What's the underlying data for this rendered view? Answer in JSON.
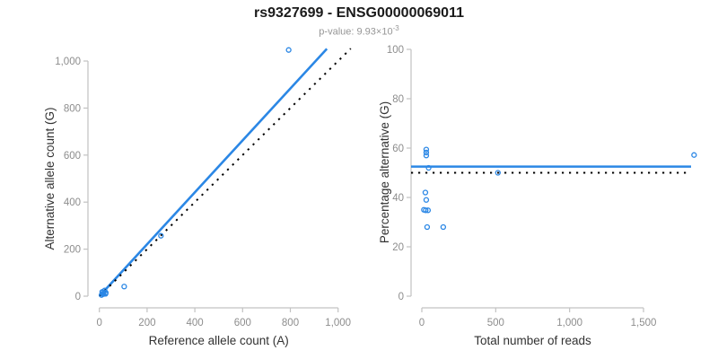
{
  "header": {
    "title": "rs9327699 - ENSG00000069011",
    "subtitle_base": "p-value: 9.93×10",
    "subtitle_exponent": "-3"
  },
  "colors": {
    "accent_blue": "#2b87e5",
    "line_black": "#000000",
    "axis_line": "#c2c2c2",
    "tick_label": "#8d8d8d",
    "axis_title": "#323232",
    "title_color": "#1a1a1a",
    "subtitle_color": "#969696"
  },
  "chart_data": [
    {
      "name": "allele-counts-scatter",
      "type": "scatter",
      "title": "",
      "xlabel": "Reference allele count (A)",
      "ylabel": "Alternative allele count (G)",
      "xlim": [
        0,
        1000
      ],
      "ylim": [
        0,
        1000
      ],
      "grid": false,
      "legend": "none",
      "xticks": [
        0,
        200,
        400,
        600,
        800,
        1000
      ],
      "xtick_labels": [
        "0",
        "200",
        "400",
        "600",
        "800",
        "1,000"
      ],
      "yticks": [
        0,
        200,
        400,
        600,
        800,
        1000
      ],
      "ytick_labels": [
        "0",
        "200",
        "400",
        "600",
        "800",
        "1,000"
      ],
      "points": [
        [
          9,
          5
        ],
        [
          12,
          18
        ],
        [
          12.5,
          17.5
        ],
        [
          13,
          17
        ],
        [
          14,
          10
        ],
        [
          17,
          9
        ],
        [
          18,
          12
        ],
        [
          22,
          24
        ],
        [
          26,
          10
        ],
        [
          27,
          15
        ],
        [
          104,
          41
        ],
        [
          258,
          257
        ],
        [
          793,
          1047
        ]
      ],
      "lines": [
        {
          "name": "fit-line",
          "kind": "segment",
          "x1": 0,
          "y1": 0,
          "x2": 953,
          "y2": 1052,
          "style": "solid",
          "color": "accent_blue"
        },
        {
          "name": "identity-line",
          "kind": "segment",
          "x1": 0,
          "y1": 0,
          "x2": 1053,
          "y2": 1053,
          "style": "dotted",
          "color": "line_black"
        }
      ]
    },
    {
      "name": "percentage-vs-reads-scatter",
      "type": "scatter",
      "title": "",
      "xlabel": "Total number of reads",
      "ylabel": "Percentage alternative (G)",
      "xlim": [
        0,
        1500
      ],
      "ylim": [
        0,
        100
      ],
      "grid": false,
      "legend": "none",
      "xticks": [
        0,
        500,
        1000,
        1500
      ],
      "xtick_labels": [
        "0",
        "500",
        "1,000",
        "1,500"
      ],
      "yticks": [
        0,
        20,
        40,
        60,
        80,
        100
      ],
      "ytick_labels": [
        "0",
        "20",
        "40",
        "60",
        "80",
        "100"
      ],
      "points": [
        [
          30,
          59.4
        ],
        [
          30,
          58.2
        ],
        [
          30,
          57
        ],
        [
          46,
          52
        ],
        [
          24,
          42
        ],
        [
          30,
          39
        ],
        [
          14,
          35
        ],
        [
          26,
          34.8
        ],
        [
          42,
          34.8
        ],
        [
          36,
          28
        ],
        [
          145,
          28
        ],
        [
          515,
          50
        ],
        [
          1842,
          57.2
        ]
      ],
      "lines": [
        {
          "name": "fit-percentage-line",
          "kind": "hline",
          "y": 52.5,
          "style": "solid",
          "color": "accent_blue"
        },
        {
          "name": "expected-percentage-line",
          "kind": "hline",
          "y": 50,
          "style": "dotted",
          "color": "line_black"
        }
      ]
    }
  ]
}
